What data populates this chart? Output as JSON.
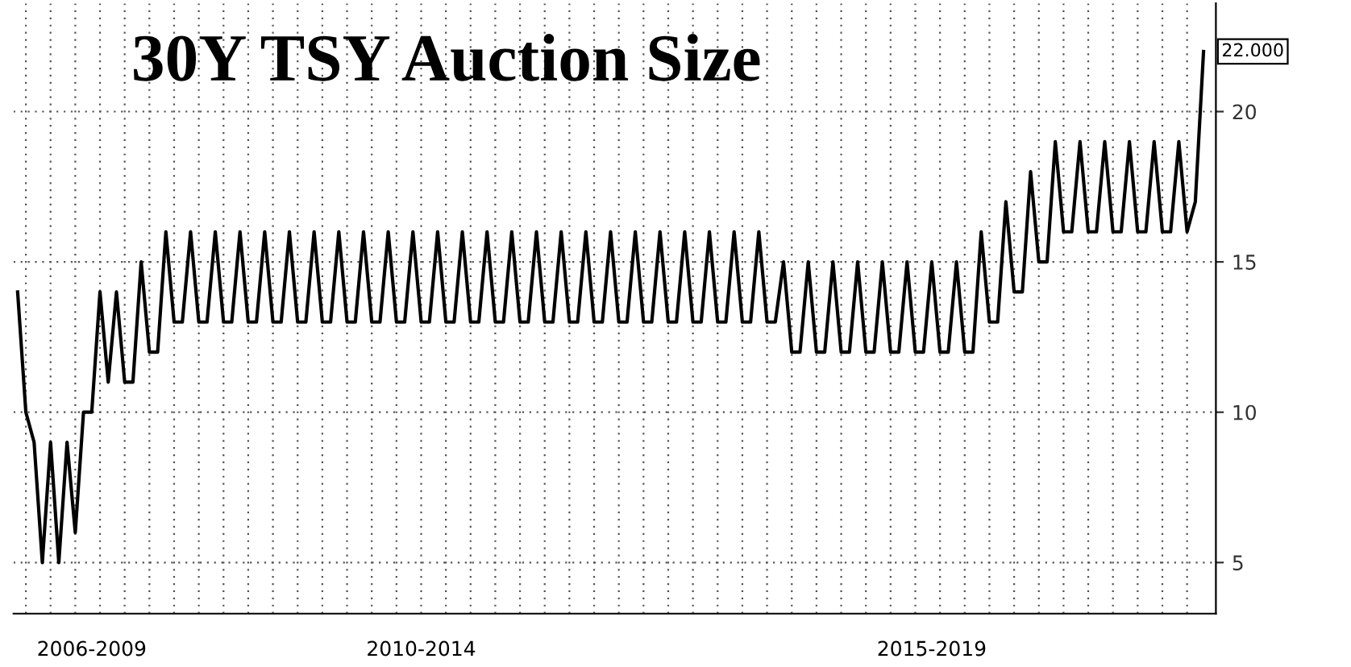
{
  "chart_data": {
    "type": "line",
    "title": "30Y TSY Auction Size",
    "categories": [
      null,
      null,
      null,
      null,
      null,
      null,
      null,
      null,
      null,
      "2006-2009",
      null,
      null,
      null,
      null,
      null,
      null,
      null,
      null,
      null,
      null,
      null,
      null,
      null,
      null,
      null,
      null,
      null,
      null,
      null,
      null,
      null,
      null,
      null,
      null,
      null,
      null,
      null,
      null,
      null,
      null,
      null,
      null,
      null,
      null,
      null,
      null,
      null,
      null,
      null,
      "2010-2014",
      null,
      null,
      null,
      null,
      null,
      null,
      null,
      null,
      null,
      null,
      null,
      null,
      null,
      null,
      null,
      null,
      null,
      null,
      null,
      null,
      null,
      null,
      null,
      null,
      null,
      null,
      null,
      null,
      null,
      null,
      null,
      null,
      null,
      null,
      null,
      null,
      null,
      null,
      null,
      null,
      null,
      null,
      null,
      null,
      null,
      null,
      null,
      null,
      null,
      null,
      null,
      null,
      null,
      null,
      null,
      null,
      null,
      null,
      null,
      null,
      null,
      "2015-2019",
      null,
      null,
      null,
      null,
      null,
      null,
      null,
      null,
      null,
      null,
      null,
      null,
      null,
      null,
      null,
      null,
      null,
      null,
      null,
      null,
      null,
      null,
      null,
      null,
      null,
      null,
      null,
      null,
      null,
      null,
      null,
      null,
      null
    ],
    "series": [
      {
        "color": "#000000",
        "values": [
          14,
          10,
          9,
          5,
          9,
          5,
          9,
          6,
          10,
          10,
          14,
          11,
          14,
          11,
          11,
          15,
          12,
          12,
          16,
          13,
          13,
          16,
          13,
          13,
          16,
          13,
          13,
          16,
          13,
          13,
          16,
          13,
          13,
          16,
          13,
          13,
          16,
          13,
          13,
          16,
          13,
          13,
          16,
          13,
          13,
          16,
          13,
          13,
          16,
          13,
          13,
          16,
          13,
          13,
          16,
          13,
          13,
          16,
          13,
          13,
          16,
          13,
          13,
          16,
          13,
          13,
          16,
          13,
          13,
          16,
          13,
          13,
          16,
          13,
          13,
          16,
          13,
          13,
          16,
          13,
          13,
          16,
          13,
          13,
          16,
          13,
          13,
          16,
          13,
          13,
          16,
          13,
          13,
          15,
          12,
          12,
          15,
          12,
          12,
          15,
          12,
          12,
          15,
          12,
          12,
          15,
          12,
          12,
          15,
          12,
          12,
          15,
          12,
          12,
          15,
          12,
          12,
          16,
          13,
          13,
          17,
          14,
          14,
          18,
          15,
          15,
          19,
          16,
          16,
          19,
          16,
          16,
          19,
          16,
          16,
          19,
          16,
          16,
          19,
          16,
          16,
          19,
          16,
          17,
          22
        ],
        "value_labels": [
          null,
          null,
          null,
          null,
          null,
          null,
          null,
          null,
          null,
          null,
          null,
          null,
          null,
          null,
          null,
          null,
          null,
          null,
          null,
          null,
          null,
          null,
          null,
          null,
          null,
          null,
          null,
          null,
          null,
          null,
          null,
          null,
          null,
          null,
          null,
          null,
          null,
          null,
          null,
          null,
          null,
          null,
          null,
          null,
          null,
          null,
          null,
          null,
          null,
          null,
          null,
          null,
          null,
          null,
          null,
          null,
          null,
          null,
          null,
          null,
          null,
          null,
          null,
          null,
          null,
          null,
          null,
          null,
          null,
          null,
          null,
          null,
          null,
          null,
          null,
          null,
          null,
          null,
          null,
          null,
          null,
          null,
          null,
          null,
          null,
          null,
          null,
          null,
          null,
          null,
          null,
          null,
          null,
          null,
          null,
          null,
          null,
          null,
          null,
          null,
          null,
          null,
          null,
          null,
          null,
          null,
          null,
          null,
          null,
          null,
          null,
          null,
          null,
          null,
          null,
          null,
          null,
          null,
          null,
          null,
          null,
          null,
          null,
          null,
          null,
          null,
          null,
          null,
          null,
          null,
          null,
          null,
          null,
          null,
          null,
          null,
          null,
          null,
          null,
          null,
          null,
          null,
          null,
          null,
          "22.000"
        ]
      }
    ],
    "ylim": [
      3.3,
      23.6
    ],
    "yticks": [
      5,
      10,
      15,
      20
    ],
    "grid": true,
    "marker": "none",
    "line_style": "solid",
    "legend": false
  }
}
